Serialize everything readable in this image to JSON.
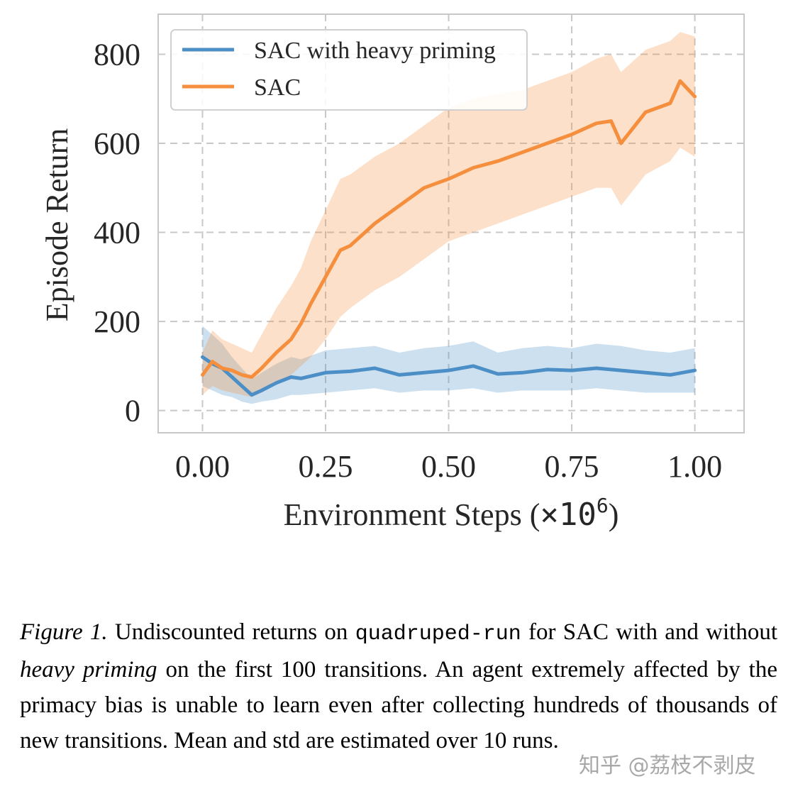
{
  "chart_data": {
    "type": "line",
    "title": "",
    "xlabel": "Environment Steps (",
    "xlabel_mult": "×10",
    "xlabel_exp": "6",
    "xlabel_close": ")",
    "ylabel": "Episode Return",
    "xlim": [
      -0.09,
      1.1
    ],
    "ylim": [
      -50,
      890
    ],
    "xticks": [
      0.0,
      0.25,
      0.5,
      0.75,
      1.0
    ],
    "xtick_labels": [
      "0.00",
      "0.25",
      "0.50",
      "0.75",
      "1.00"
    ],
    "yticks": [
      0,
      200,
      400,
      600,
      800
    ],
    "ytick_labels": [
      "0",
      "200",
      "400",
      "600",
      "800"
    ],
    "grid": true,
    "legend_position": "top-left",
    "series": [
      {
        "name": "SAC with heavy priming",
        "color": "#4c8fc6",
        "x": [
          0.0,
          0.02,
          0.04,
          0.06,
          0.08,
          0.1,
          0.12,
          0.15,
          0.18,
          0.2,
          0.25,
          0.3,
          0.35,
          0.4,
          0.45,
          0.5,
          0.55,
          0.6,
          0.65,
          0.7,
          0.75,
          0.8,
          0.85,
          0.9,
          0.95,
          1.0
        ],
        "mean": [
          120,
          105,
          95,
          75,
          55,
          35,
          45,
          62,
          75,
          72,
          85,
          88,
          95,
          80,
          85,
          90,
          100,
          82,
          85,
          92,
          90,
          95,
          90,
          85,
          80,
          90
        ],
        "lower": [
          55,
          45,
          35,
          30,
          20,
          15,
          20,
          25,
          35,
          35,
          40,
          45,
          50,
          40,
          45,
          45,
          50,
          40,
          45,
          45,
          45,
          50,
          45,
          40,
          40,
          40
        ],
        "upper": [
          190,
          170,
          150,
          120,
          95,
          70,
          85,
          105,
          120,
          115,
          135,
          140,
          145,
          130,
          140,
          145,
          155,
          130,
          140,
          145,
          140,
          150,
          145,
          135,
          130,
          140
        ]
      },
      {
        "name": "SAC",
        "color": "#f58e3d",
        "x": [
          0.0,
          0.02,
          0.04,
          0.06,
          0.08,
          0.1,
          0.12,
          0.15,
          0.18,
          0.2,
          0.22,
          0.25,
          0.28,
          0.3,
          0.35,
          0.4,
          0.45,
          0.5,
          0.55,
          0.6,
          0.65,
          0.7,
          0.75,
          0.8,
          0.83,
          0.85,
          0.9,
          0.95,
          0.97,
          1.0
        ],
        "mean": [
          80,
          110,
          95,
          90,
          80,
          75,
          95,
          130,
          160,
          195,
          240,
          300,
          360,
          370,
          420,
          460,
          500,
          520,
          545,
          560,
          580,
          600,
          620,
          645,
          650,
          600,
          670,
          690,
          740,
          705
        ],
        "lower": [
          35,
          55,
          45,
          40,
          35,
          30,
          40,
          60,
          80,
          100,
          120,
          160,
          210,
          230,
          270,
          300,
          340,
          380,
          400,
          420,
          440,
          460,
          480,
          500,
          500,
          460,
          530,
          560,
          590,
          570
        ],
        "upper": [
          130,
          180,
          160,
          150,
          140,
          130,
          170,
          230,
          280,
          320,
          380,
          450,
          520,
          530,
          570,
          600,
          640,
          680,
          700,
          710,
          720,
          740,
          760,
          790,
          800,
          760,
          810,
          830,
          850,
          840
        ]
      }
    ]
  },
  "caption": {
    "fig_label": "Figure 1.",
    "part1": " Undiscounted returns on ",
    "code": "quadruped-run",
    "part2": " for SAC with and without ",
    "em": "heavy priming",
    "part3": " on the first 100 transitions. An agent extremely affected by the primacy bias is unable to learn even after collecting hundreds of thousands of new transitions. Mean and std are estimated over 10 runs."
  },
  "watermark": "知乎 @荔枝不剥皮"
}
